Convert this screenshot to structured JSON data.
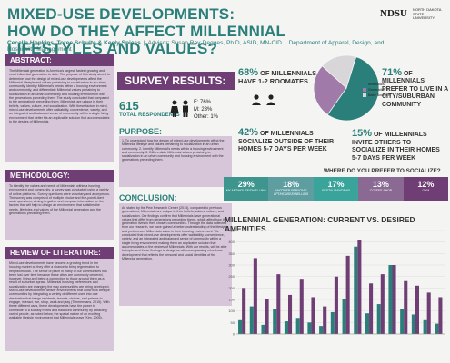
{
  "header": {
    "title_line1": "MIXED-USE DEVELOPMENTS:",
    "title_line2": "HOW DO THEY AFFECT MILLENNIAL LIFESTYLES AND VALUES?",
    "authors": "Cecelia Hopkins, Toree Schulte & Keely Spiess",
    "advisor": "Advisor: Susan Ray-Degges, Ph.D, ASID, MN-CID",
    "department": "Department of Apparel, Design, and Hospitality Management",
    "logo_main": "NDSU",
    "logo_sub": "NORTH DAKOTA STATE UNIVERSITY"
  },
  "abstract": {
    "heading": "ABSTRACT:",
    "text": "The Millennial generation is America's largest, fastest growing and most influential generation to date. The purpose of this study aimed to determine how the design of mixed-use developments affect the Millennial lifestyle and values pertaining to socialization in an urban community. Identify Millennial's needs within a housing environment and community, and differentiate Millennial values pertaining to socialization in an urban community and housing environment with the generations preceding them. The study concluded that compared to the generations preceding them, Millennials are unique in their beliefs, values, culture, and socialization. With these factors in mind, mixed-use developments offer walkability, convenience, variety, and an integrated and balanced sense of community within a single living environment that better fits an applicable solution that accommodates to the desires of Millennials."
  },
  "methodology": {
    "heading": "METHODOLOGY:",
    "text": "To identify the values and needs of Millennials within a housing environment and community, a survey was conducted using a variety of online platforms. Survey questions were voluntary and anonymous. The survey was comprised of multiple choice and five-point Likert scale questions, aiming to gather and compare information on the factors that will help to design an environment that satisfies the needs, lifestyles and values of the Millennial generation and the generations preceding them."
  },
  "review": {
    "heading": "REVIEW OF LITERATURE:",
    "text": "Mixed-use developments have become a growing trend in the housing market as they offer a chance to bring regeneration to neighborhoods. The sense of place in many of our communities has been lost over time because these cities are commonly centered, however, living and being a connection to those around them as a result of suburban sprawl. Millennial housing preferences and socialization are changing the way communities are being developed. Mixed-use developments deliver environments that allow new lifestyle communities by integrating a variety of different uses into one destination that brings residents, tenants, visitors, and patrons to engage, interact, live, shop, work and play (Timmermans, 2015). With these different uses, these developments have the power to contribute to a socially mixed and balanced community by attracting varied people, as noted below, the spatial nature of an evolving walkable lifestyle environment that Millennials crave (Kim, 2005)."
  },
  "survey": {
    "heading": "SURVEY RESULTS:",
    "respondents_num": "615",
    "respondents_label": "TOTAL RESPONDENTS",
    "female": "F: 76%",
    "male": "M: 23%",
    "other": "Other: 1%"
  },
  "purpose": {
    "heading": "PURPOSE:",
    "text": "1. To understand how the design of mixed-use developments affect the Millennial lifestyle and values pertaining to socialization in an urban community. 2. Identify Millennial's needs within a housing environment and community. 3. Differentiate Millennial values pertaining to socialization in an urban community and housing environment with the generations preceding them."
  },
  "conclusion": {
    "heading": "CONCLUSION:",
    "text": "As stated by the Pew Research Center (2014), compared to previous generations, Millennials are unique in their beliefs, values, culture, and socialization. Our findings confirm that Millennials have generational values that differ from generations preceding them - which affect how this generation lives in their chosen communities. Through the data collected from our research, we have gained a better understanding of the lifestyles and preferences Millennials value in their housing environment. We concluded that mixed-use developments offer walkability, convenience, variety, and an integrated and balanced sense of community within a single living environment making them an applicable solution that accommodates to the desires of Millennials. With our results, will be able to implement these findings to design an all-encompassing mixed-use development that reflects the personal and social identities of the Millennial generation."
  },
  "stats": {
    "roommates_num": "68%",
    "roommates_text": "OF MILLENNIALS HAVE 1-2 ROOMATES",
    "city_num": "71%",
    "city_text": "OF MILLENNIALS PREFER TO LIVE IN A CITY/SUBURBAN COMMUNITY",
    "socialize_num": "42%",
    "socialize_text": "OF MILLENNIALS SOCIALIZE OUTSIDE OF THEIR HOMES 5-7 DAYS PER WEEK",
    "invite_num": "15%",
    "invite_text": "OF MILLENNIALS INVITE OTHERS TO SOCIALIZE IN THEIR HOMES 5-7 DAYS PER WEEK"
  },
  "pie": {
    "legend": [
      "Millennials",
      "Generation X",
      "Baby Boomers"
    ],
    "values": [
      55,
      27,
      18
    ],
    "colors": [
      "#2b7f7a",
      "#a07aa8",
      "#d8d6d8"
    ]
  },
  "where": {
    "question": "WHERE DO YOU PREFER TO SOCIALIZE?",
    "segments": [
      {
        "pct": "29%",
        "label": "MY APT/HOUSE/DWELLING",
        "color": "#3d958e"
      },
      {
        "pct": "18%",
        "label": "ANOTHER PERSON'S APT/HOUSE/DWELLING",
        "color": "#5e9ea0"
      },
      {
        "pct": "17%",
        "label": "RESTAURANT/BAR",
        "color": "#3aa39a"
      },
      {
        "pct": "13%",
        "label": "COFFEE SHOP",
        "color": "#8a6a92"
      },
      {
        "pct": "12%",
        "label": "GYM",
        "color": "#6f3e74"
      }
    ]
  },
  "amenities": {
    "title": "MILLENNIAL GENERATION: CURRENT VS. DESIRED AMENITIES"
  },
  "chart_data": {
    "type": "bar",
    "title": "MILLENNIAL GENERATION: CURRENT VS. DESIRED AMENITIES",
    "ylim": [
      0,
      450
    ],
    "yticks": [
      0,
      50,
      100,
      150,
      200,
      250,
      300,
      350,
      400,
      450
    ],
    "series": [
      {
        "values": [
          60,
          120,
          40,
          110,
          55,
          70,
          50,
          35,
          95,
          150,
          380,
          90,
          130,
          300,
          110,
          85,
          60,
          45
        ],
        "color": "#2b7f7a"
      },
      {
        "values": [
          200,
          330,
          150,
          260,
          170,
          240,
          160,
          120,
          250,
          340,
          410,
          220,
          260,
          300,
          230,
          210,
          180,
          160
        ],
        "color": "#6f3e74"
      }
    ]
  }
}
